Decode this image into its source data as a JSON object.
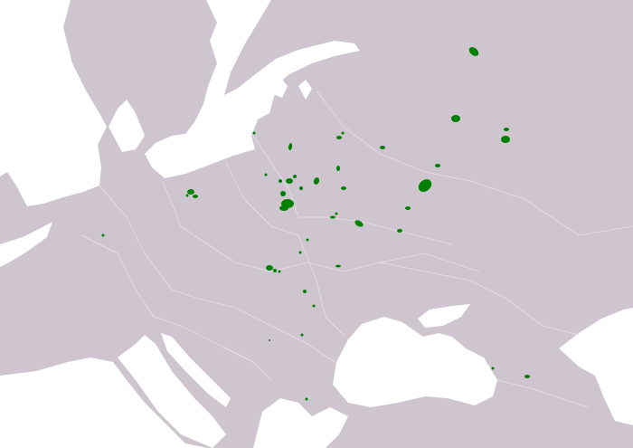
{
  "map": {
    "colors": {
      "land": "#cec5cf",
      "water": "#ffffff",
      "borders": "#e8e2e8",
      "range": "#008000"
    },
    "legend": []
  }
}
